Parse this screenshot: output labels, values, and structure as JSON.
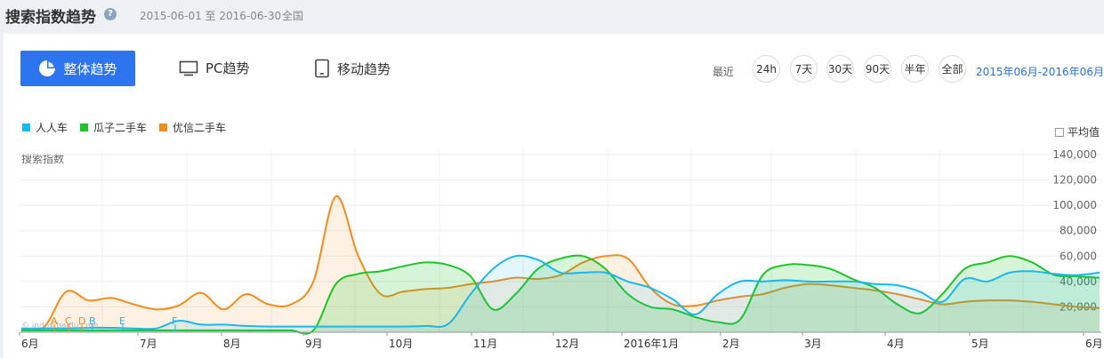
{
  "header": {
    "title": "搜索指数趋势",
    "help_icon": "?",
    "date_range": "2015-06-01 至 2016-06-30",
    "region": "全国"
  },
  "tabs": [
    {
      "label": "整体趋势",
      "icon": "pie-chart-icon",
      "active": true
    },
    {
      "label": "PC趋势",
      "icon": "monitor-icon",
      "active": false
    },
    {
      "label": "移动趋势",
      "icon": "tablet-icon",
      "active": false
    }
  ],
  "time_filter": {
    "recent_label": "最近",
    "options": [
      "24h",
      "7天",
      "30天",
      "90天",
      "半年",
      "全部"
    ],
    "custom_range": "2015年06月-2016年06月"
  },
  "average_toggle": "平均值",
  "colors": {
    "accent": "#2c74f0",
    "renren": "#1bb7ea",
    "guazi": "#1ec428",
    "youxin": "#f18d1f"
  },
  "chart_data": {
    "type": "area",
    "ylabel": "搜索指数",
    "ylim": [
      0,
      140000
    ],
    "y_ticks": [
      "20,000",
      "40,000",
      "60,000",
      "80,000",
      "100,000",
      "120,000",
      "140,000"
    ],
    "x_ticks": [
      "6月",
      "7月",
      "8月",
      "9月",
      "10月",
      "11月",
      "12月",
      "2016年1月",
      "2月",
      "3月",
      "4月",
      "5月",
      "6月"
    ],
    "legend": [
      "人人车",
      "瓜子二手车",
      "优信二手车"
    ],
    "event_markers": [
      "A",
      "B",
      "C",
      "D",
      "E",
      "F"
    ],
    "watermark": "© index.baidu.com",
    "series": [
      {
        "name": "人人车",
        "values": [
          3000,
          3000,
          3000,
          3500,
          3500,
          3000,
          3000,
          9000,
          6000,
          6000,
          5000,
          4500,
          4500,
          4500,
          4500,
          4500,
          4500,
          4500,
          5000,
          6500,
          30000,
          50000,
          60000,
          57000,
          47000,
          47000,
          47000,
          40000,
          35000,
          26000,
          14000,
          30000,
          40000,
          40000,
          41000,
          40000,
          40000,
          40000,
          38000,
          37000,
          32000,
          24000,
          42000,
          40000,
          47000,
          48000,
          46000,
          45000,
          47000
        ]
      },
      {
        "name": "瓜子二手车",
        "values": [
          1500,
          1500,
          1500,
          1500,
          1500,
          1500,
          1500,
          1500,
          1500,
          1500,
          1500,
          1500,
          1500,
          1500,
          38000,
          46000,
          48000,
          52000,
          55000,
          53000,
          44000,
          18000,
          30000,
          50000,
          58000,
          60000,
          50000,
          30000,
          20000,
          18000,
          12000,
          8000,
          10000,
          45000,
          53000,
          53000,
          50000,
          42000,
          35000,
          22000,
          15000,
          30000,
          50000,
          55000,
          60000,
          55000,
          45000,
          44000,
          43000
        ]
      },
      {
        "name": "优信二手车",
        "values": [
          3000,
          4000,
          32000,
          25000,
          27000,
          22000,
          18000,
          21000,
          31000,
          18000,
          30000,
          22000,
          22000,
          40000,
          107000,
          60000,
          30000,
          32000,
          34000,
          35000,
          38000,
          40000,
          43000,
          42000,
          45000,
          55000,
          60000,
          58000,
          35000,
          22000,
          21000,
          25000,
          28000,
          30000,
          35000,
          38000,
          37000,
          35000,
          33000,
          30000,
          26000,
          22000,
          24000,
          25000,
          25000,
          24000,
          22000,
          20000,
          19000
        ]
      }
    ]
  }
}
